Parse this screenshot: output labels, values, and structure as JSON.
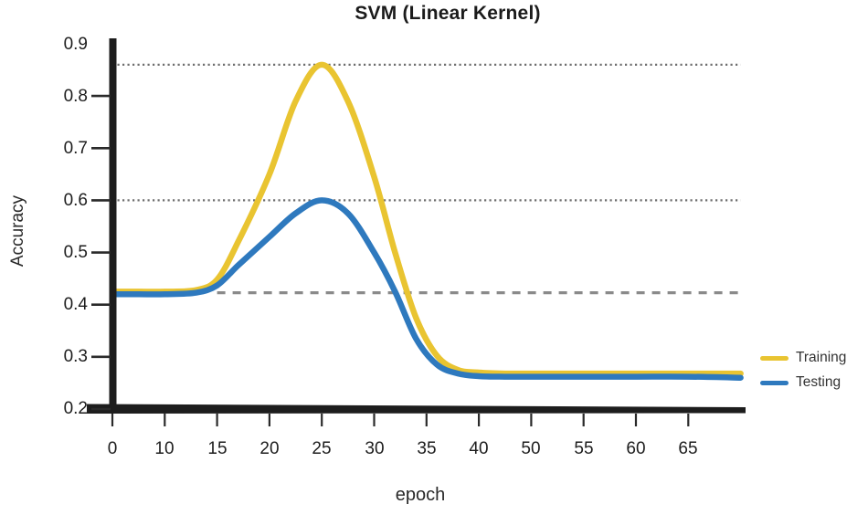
{
  "page": {
    "background": "#FFFFFF"
  },
  "chart_data": {
    "type": "line",
    "title": "SVM (Linear Kernel)",
    "xlabel": "epoch",
    "ylabel": "Accuracy",
    "x_axis": {
      "tick_labels": [
        "0",
        "10",
        "15",
        "20",
        "25",
        "30",
        "35",
        "40",
        "50",
        "55",
        "60",
        "65"
      ],
      "layout": "uniform categorical spacing",
      "virtual_end_epoch": 70
    },
    "y_axis": {
      "tick_labels": [
        "0.9",
        "0.8",
        "0.7",
        "0.6",
        "0.5",
        "0.4",
        "0.3",
        "0.2"
      ],
      "labels_with_tick_marks": [
        "0.8",
        "0.7",
        "0.6",
        "0.5",
        "0.4",
        "0.3",
        "0.2"
      ],
      "min": 0.2,
      "max": 0.9
    },
    "grid": "off",
    "legend": {
      "position": "right",
      "entries": [
        {
          "label": "Training",
          "color": "#E9C431"
        },
        {
          "label": "Testing",
          "color": "#2E79BE"
        }
      ]
    },
    "series": [
      {
        "name": "Training",
        "color": "#E9C431",
        "points": [
          [
            0,
            0.425
          ],
          [
            5,
            0.425
          ],
          [
            10,
            0.425
          ],
          [
            13,
            0.428
          ],
          [
            15,
            0.448
          ],
          [
            17,
            0.52
          ],
          [
            20,
            0.65
          ],
          [
            22.5,
            0.79
          ],
          [
            25,
            0.86
          ],
          [
            27.5,
            0.79
          ],
          [
            30,
            0.645
          ],
          [
            32,
            0.5
          ],
          [
            34,
            0.375
          ],
          [
            36,
            0.302
          ],
          [
            38,
            0.275
          ],
          [
            40,
            0.27
          ],
          [
            45,
            0.268
          ],
          [
            50,
            0.268
          ],
          [
            55,
            0.268
          ],
          [
            60,
            0.268
          ],
          [
            65,
            0.268
          ],
          [
            70,
            0.268
          ]
        ]
      },
      {
        "name": "Testing",
        "color": "#2E79BE",
        "points": [
          [
            0,
            0.42
          ],
          [
            5,
            0.42
          ],
          [
            10,
            0.42
          ],
          [
            13,
            0.423
          ],
          [
            15,
            0.437
          ],
          [
            17,
            0.475
          ],
          [
            20,
            0.53
          ],
          [
            22.5,
            0.575
          ],
          [
            25,
            0.6
          ],
          [
            27.5,
            0.575
          ],
          [
            30,
            0.5
          ],
          [
            32,
            0.425
          ],
          [
            34,
            0.335
          ],
          [
            36,
            0.285
          ],
          [
            38,
            0.268
          ],
          [
            40,
            0.263
          ],
          [
            45,
            0.262
          ],
          [
            50,
            0.262
          ],
          [
            55,
            0.262
          ],
          [
            60,
            0.262
          ],
          [
            65,
            0.262
          ],
          [
            70,
            0.26
          ]
        ]
      }
    ],
    "reference_lines": [
      {
        "value": 0.86,
        "style": "dotted",
        "from_epoch": 0,
        "to_epoch": 70,
        "color": "#6E6E6E"
      },
      {
        "value": 0.6,
        "style": "dotted",
        "from_epoch": 0,
        "to_epoch": 70,
        "color": "#6E6E6E"
      },
      {
        "value": 0.423,
        "style": "dashed",
        "from_epoch": 15,
        "to_epoch": 70,
        "color": "#8A8A8A"
      }
    ],
    "axis_color": "#1d1d1d"
  }
}
